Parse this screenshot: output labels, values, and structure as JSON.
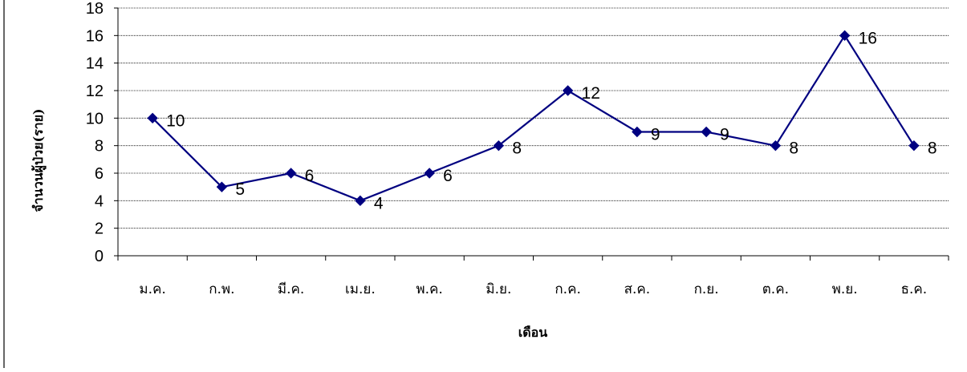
{
  "chart_data": {
    "type": "line",
    "categories": [
      "ม.ค.",
      "ก.พ.",
      "มี.ค.",
      "เม.ย.",
      "พ.ค.",
      "มิ.ย.",
      "ก.ค.",
      "ส.ค.",
      "ก.ย.",
      "ต.ค.",
      "พ.ย.",
      "ธ.ค."
    ],
    "series": [
      {
        "values": [
          10,
          5,
          6,
          4,
          6,
          8,
          12,
          9,
          9,
          8,
          16,
          8
        ]
      }
    ],
    "data_labels": [
      "10",
      "5",
      "6",
      "4",
      "6",
      "8",
      "12",
      "9",
      "9",
      "8",
      "16",
      "8"
    ],
    "yticks": [
      "0",
      "2",
      "4",
      "6",
      "8",
      "10",
      "12",
      "14",
      "16",
      "18"
    ],
    "xlabel": "เดือน",
    "ylabel": "จำนวนผู้ป่วย(ราย)",
    "ylim": [
      0,
      18
    ],
    "grid": true,
    "legend": "none",
    "colors": {
      "line": "#000080",
      "marker": "#000080",
      "grid": "#000000",
      "axis": "#000000"
    }
  }
}
